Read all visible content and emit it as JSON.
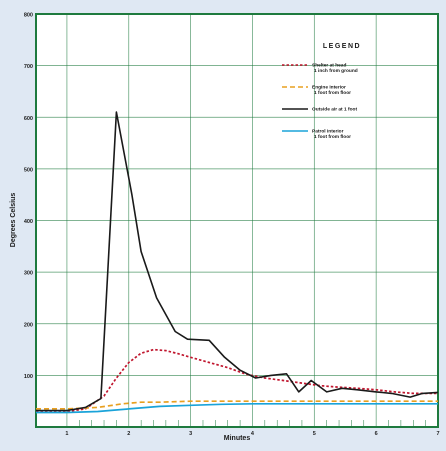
{
  "chart_data": {
    "type": "line",
    "xlabel": "Minutes",
    "ylabel": "Degrees Celsius",
    "xlim": [
      0.5,
      7
    ],
    "ylim": [
      0,
      800
    ],
    "x_ticks": [
      1,
      2,
      3,
      4,
      5,
      6,
      7
    ],
    "y_ticks": [
      100,
      200,
      300,
      400,
      500,
      600,
      700,
      800
    ],
    "x_tick_labels": [
      "1",
      "2",
      "3",
      "4",
      "5",
      "6",
      "7"
    ],
    "y_tick_labels": [
      "100",
      "200",
      "300",
      "400",
      "500",
      "600",
      "700",
      "800"
    ],
    "grid": true,
    "legend": {
      "title": "LEGEND",
      "placement": "top-right",
      "entries": [
        {
          "label_line1": "Shelter at head",
          "label_line2": "1 inch from ground",
          "color": "#c0162e",
          "dash": "dotted"
        },
        {
          "label_line1": "Engine interior",
          "label_line2": "1 foot from floor",
          "color": "#e8a020",
          "dash": "dashed"
        },
        {
          "label_line1": "Outside air at 1 foot",
          "label_line2": "",
          "color": "#1a1a1a",
          "dash": "solid"
        },
        {
          "label_line1": "Patrol interior",
          "label_line2": "1 foot from floor",
          "color": "#1aa3d9",
          "dash": "solid"
        }
      ]
    },
    "series": [
      {
        "name": "Shelter at head 1 inch from ground",
        "color": "#c0162e",
        "dash": "dotted",
        "points": [
          [
            0.5,
            30
          ],
          [
            1.0,
            30
          ],
          [
            1.3,
            35
          ],
          [
            1.6,
            60
          ],
          [
            1.8,
            95
          ],
          [
            2.0,
            125
          ],
          [
            2.2,
            143
          ],
          [
            2.4,
            150
          ],
          [
            2.6,
            148
          ],
          [
            2.8,
            142
          ],
          [
            3.0,
            135
          ],
          [
            3.3,
            125
          ],
          [
            3.6,
            115
          ],
          [
            3.9,
            102
          ],
          [
            4.2,
            95
          ],
          [
            4.5,
            90
          ],
          [
            4.8,
            85
          ],
          [
            5.1,
            80
          ],
          [
            5.4,
            77
          ],
          [
            5.7,
            75
          ],
          [
            6.0,
            72
          ],
          [
            6.3,
            68
          ],
          [
            6.6,
            65
          ],
          [
            7.0,
            65
          ]
        ]
      },
      {
        "name": "Engine interior 1 foot from floor",
        "color": "#e8a020",
        "dash": "dashed",
        "points": [
          [
            0.5,
            35
          ],
          [
            1.0,
            35
          ],
          [
            1.5,
            38
          ],
          [
            1.9,
            45
          ],
          [
            2.2,
            48
          ],
          [
            2.5,
            48
          ],
          [
            3.0,
            50
          ],
          [
            3.5,
            50
          ],
          [
            4.0,
            50
          ],
          [
            4.5,
            50
          ],
          [
            5.0,
            50
          ],
          [
            5.5,
            50
          ],
          [
            6.0,
            50
          ],
          [
            6.5,
            50
          ],
          [
            7.0,
            50
          ]
        ]
      },
      {
        "name": "Outside air at 1 foot",
        "color": "#1a1a1a",
        "dash": "solid",
        "points": [
          [
            0.5,
            32
          ],
          [
            1.0,
            32
          ],
          [
            1.3,
            38
          ],
          [
            1.55,
            55
          ],
          [
            1.8,
            610
          ],
          [
            2.05,
            450
          ],
          [
            2.2,
            340
          ],
          [
            2.45,
            250
          ],
          [
            2.75,
            185
          ],
          [
            2.95,
            170
          ],
          [
            3.3,
            168
          ],
          [
            3.55,
            135
          ],
          [
            3.8,
            110
          ],
          [
            4.05,
            95
          ],
          [
            4.3,
            100
          ],
          [
            4.55,
            103
          ],
          [
            4.75,
            68
          ],
          [
            4.95,
            90
          ],
          [
            5.2,
            68
          ],
          [
            5.45,
            75
          ],
          [
            5.7,
            72
          ],
          [
            6.0,
            68
          ],
          [
            6.25,
            65
          ],
          [
            6.55,
            58
          ],
          [
            6.75,
            65
          ],
          [
            7.0,
            67
          ]
        ]
      },
      {
        "name": "Patrol interior 1 foot from floor",
        "color": "#1aa3d9",
        "dash": "solid",
        "points": [
          [
            0.5,
            28
          ],
          [
            1.0,
            28
          ],
          [
            1.5,
            30
          ],
          [
            2.0,
            35
          ],
          [
            2.5,
            40
          ],
          [
            3.0,
            42
          ],
          [
            3.5,
            44
          ],
          [
            4.0,
            45
          ],
          [
            4.5,
            45
          ],
          [
            5.0,
            45
          ],
          [
            5.5,
            45
          ],
          [
            6.0,
            45
          ],
          [
            6.5,
            45
          ],
          [
            7.0,
            45
          ]
        ]
      }
    ]
  }
}
